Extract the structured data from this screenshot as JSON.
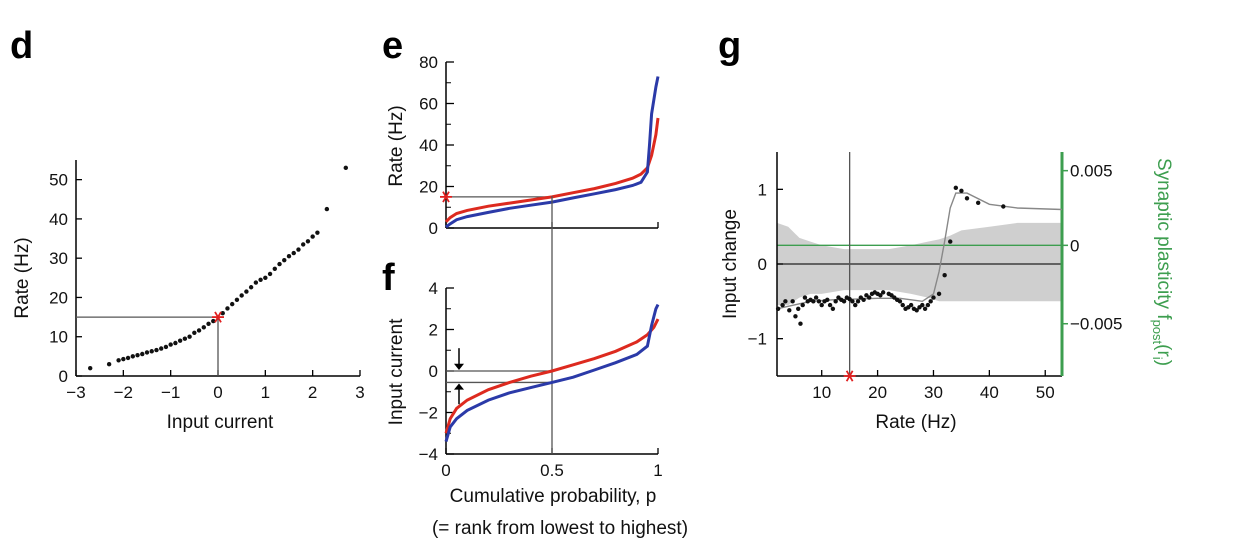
{
  "panels": {
    "d": {
      "letter": "d"
    },
    "e": {
      "letter": "e"
    },
    "f": {
      "letter": "f"
    },
    "g": {
      "letter": "g"
    }
  },
  "chart_data": [
    {
      "id": "d",
      "type": "scatter",
      "xlabel": "Input current",
      "ylabel": "Rate (Hz)",
      "xlim": [
        -3,
        3
      ],
      "ylim": [
        0,
        55
      ],
      "xticks": [
        "−3",
        "−2",
        "−1",
        "0",
        "1",
        "2",
        "3"
      ],
      "yticks": [
        "0",
        "10",
        "20",
        "30",
        "40",
        "50"
      ],
      "marker": {
        "x": 0,
        "y": 15,
        "color": "#e02020"
      },
      "guide_lines": {
        "x": 0,
        "y": 15
      },
      "points": [
        [
          -2.7,
          2
        ],
        [
          -2.3,
          3
        ],
        [
          -2.1,
          4
        ],
        [
          -2.0,
          4.3
        ],
        [
          -1.9,
          4.6
        ],
        [
          -1.8,
          5
        ],
        [
          -1.7,
          5.3
        ],
        [
          -1.6,
          5.6
        ],
        [
          -1.5,
          6
        ],
        [
          -1.4,
          6.3
        ],
        [
          -1.3,
          6.6
        ],
        [
          -1.2,
          7
        ],
        [
          -1.1,
          7.4
        ],
        [
          -1.0,
          8
        ],
        [
          -0.9,
          8.4
        ],
        [
          -0.8,
          9
        ],
        [
          -0.7,
          9.5
        ],
        [
          -0.6,
          10
        ],
        [
          -0.5,
          11
        ],
        [
          -0.4,
          11.6
        ],
        [
          -0.3,
          12.4
        ],
        [
          -0.2,
          13.3
        ],
        [
          -0.1,
          14
        ],
        [
          0.1,
          16
        ],
        [
          0.2,
          17.2
        ],
        [
          0.3,
          18.3
        ],
        [
          0.4,
          19.4
        ],
        [
          0.5,
          20.5
        ],
        [
          0.6,
          21.5
        ],
        [
          0.7,
          22.6
        ],
        [
          0.8,
          23.8
        ],
        [
          0.9,
          24.5
        ],
        [
          1.0,
          25
        ],
        [
          1.1,
          26
        ],
        [
          1.2,
          27.3
        ],
        [
          1.3,
          28.5
        ],
        [
          1.4,
          29.5
        ],
        [
          1.5,
          30.5
        ],
        [
          1.6,
          31.3
        ],
        [
          1.7,
          32.2
        ],
        [
          1.8,
          33.5
        ],
        [
          1.9,
          34.3
        ],
        [
          2.0,
          35.5
        ],
        [
          2.1,
          36.5
        ],
        [
          2.3,
          42.5
        ],
        [
          2.7,
          53
        ]
      ]
    },
    {
      "id": "e",
      "type": "line",
      "xlabel": "",
      "ylabel": "Rate (Hz)",
      "xlim": [
        0,
        1
      ],
      "ylim": [
        0,
        80
      ],
      "yticks": [
        "0",
        "20",
        "40",
        "60",
        "80"
      ],
      "marker": {
        "x": 0,
        "y": 15,
        "color": "#e02020"
      },
      "guide_lines": {
        "x": 0.5,
        "y": 15
      },
      "series": [
        {
          "color": "#dd2a1f",
          "x": [
            0,
            0.02,
            0.05,
            0.1,
            0.2,
            0.3,
            0.4,
            0.5,
            0.6,
            0.7,
            0.8,
            0.88,
            0.92,
            0.95,
            0.97,
            0.99,
            1.0
          ],
          "y": [
            3,
            5,
            7,
            8.5,
            10.5,
            12,
            13.5,
            15,
            17,
            19,
            21.5,
            24,
            26,
            29,
            35,
            45,
            53
          ]
        },
        {
          "color": "#2b3aa8",
          "x": [
            0,
            0.02,
            0.05,
            0.1,
            0.2,
            0.3,
            0.4,
            0.5,
            0.6,
            0.7,
            0.8,
            0.88,
            0.92,
            0.95,
            0.96,
            0.97,
            0.99,
            1.0
          ],
          "y": [
            0.5,
            2,
            4,
            5.5,
            7.5,
            9.5,
            11,
            12.5,
            14.5,
            16.5,
            18.5,
            20.5,
            22,
            27,
            40,
            55,
            68,
            73
          ]
        }
      ]
    },
    {
      "id": "f",
      "type": "line",
      "xlabel": "Cumulative probability, p",
      "xlabel_note": "(= rank from lowest to highest)",
      "ylabel": "Input current",
      "xlim": [
        0,
        1
      ],
      "ylim": [
        -4,
        4
      ],
      "xticks": [
        "0",
        "0.5",
        "1"
      ],
      "yticks": [
        "−4",
        "−2",
        "0",
        "2",
        "4"
      ],
      "guide_lines": {
        "x": 0.5,
        "y": [
          0,
          -0.55
        ]
      },
      "series": [
        {
          "color": "#dd2a1f",
          "x": [
            0,
            0.02,
            0.05,
            0.1,
            0.2,
            0.3,
            0.4,
            0.5,
            0.6,
            0.7,
            0.8,
            0.9,
            0.95,
            0.98,
            1.0
          ],
          "y": [
            -3.0,
            -2.3,
            -1.8,
            -1.4,
            -0.9,
            -0.55,
            -0.25,
            0,
            0.3,
            0.6,
            0.95,
            1.4,
            1.75,
            2.1,
            2.5
          ]
        },
        {
          "color": "#2b3aa8",
          "x": [
            0,
            0.02,
            0.05,
            0.1,
            0.2,
            0.3,
            0.4,
            0.5,
            0.6,
            0.7,
            0.8,
            0.9,
            0.95,
            0.97,
            0.99,
            1.0
          ],
          "y": [
            -3.4,
            -2.7,
            -2.3,
            -1.9,
            -1.4,
            -1.05,
            -0.8,
            -0.55,
            -0.3,
            0.05,
            0.4,
            0.8,
            1.2,
            2.2,
            3.0,
            3.2
          ]
        }
      ]
    },
    {
      "id": "g",
      "type": "scatter",
      "xlabel": "Rate (Hz)",
      "ylabel": "Input change",
      "ylabel_right": "Synaptic plasticity f",
      "ylabel_right_sub": "post",
      "ylabel_right_arg": "(r",
      "ylabel_right_arg_sub": "i",
      "ylabel_right_close": ")",
      "xlim": [
        2,
        53
      ],
      "ylim": [
        -1.5,
        1.5
      ],
      "xticks": [
        "10",
        "20",
        "30",
        "40",
        "50"
      ],
      "yticks": [
        "−1",
        "0",
        "1"
      ],
      "yticks_right": [
        "−0.005",
        "0",
        "0.005"
      ],
      "right_axis_color": "#3d9e4f",
      "marker": {
        "x": 15,
        "y": -1.5,
        "color": "#e02020"
      },
      "guide_lines": {
        "x": 15,
        "y": 0
      },
      "green_line_y": 0.25,
      "band_color": "#cfcfcf",
      "band": {
        "x": [
          2,
          4,
          6,
          8,
          10,
          14,
          18,
          22,
          26,
          29,
          31,
          33,
          35,
          40,
          45,
          50,
          53
        ],
        "upper": [
          0.55,
          0.5,
          0.35,
          0.3,
          0.25,
          0.2,
          0.2,
          0.2,
          0.25,
          0.3,
          0.33,
          0.38,
          0.45,
          0.5,
          0.55,
          0.55,
          0.55
        ],
        "lower": [
          -0.55,
          -0.55,
          -0.45,
          -0.4,
          -0.4,
          -0.35,
          -0.35,
          -0.35,
          -0.4,
          -0.45,
          -0.5,
          -0.5,
          -0.5,
          -0.5,
          -0.5,
          -0.5,
          -0.5
        ]
      },
      "fit_line": {
        "x": [
          2,
          5,
          8,
          12,
          16,
          20,
          24,
          28,
          30,
          31,
          32,
          33,
          34,
          36,
          40,
          45,
          53
        ],
        "y": [
          -0.6,
          -0.55,
          -0.5,
          -0.48,
          -0.47,
          -0.46,
          -0.46,
          -0.5,
          -0.4,
          -0.1,
          0.3,
          0.75,
          0.95,
          0.95,
          0.8,
          0.75,
          0.73
        ]
      },
      "points": [
        [
          2.2,
          -0.6
        ],
        [
          3.0,
          -0.55
        ],
        [
          3.5,
          -0.5
        ],
        [
          4.2,
          -0.62
        ],
        [
          4.8,
          -0.5
        ],
        [
          5.3,
          -0.7
        ],
        [
          5.8,
          -0.6
        ],
        [
          6.2,
          -0.8
        ],
        [
          6.6,
          -0.55
        ],
        [
          7.0,
          -0.45
        ],
        [
          7.5,
          -0.5
        ],
        [
          8.0,
          -0.48
        ],
        [
          8.5,
          -0.5
        ],
        [
          9.0,
          -0.45
        ],
        [
          9.5,
          -0.5
        ],
        [
          10.0,
          -0.55
        ],
        [
          10.5,
          -0.5
        ],
        [
          11.0,
          -0.48
        ],
        [
          11.5,
          -0.55
        ],
        [
          12.0,
          -0.6
        ],
        [
          12.5,
          -0.5
        ],
        [
          13.0,
          -0.45
        ],
        [
          13.5,
          -0.48
        ],
        [
          14.0,
          -0.5
        ],
        [
          14.5,
          -0.45
        ],
        [
          15.0,
          -0.47
        ],
        [
          15.5,
          -0.5
        ],
        [
          16.0,
          -0.55
        ],
        [
          16.5,
          -0.5
        ],
        [
          17.0,
          -0.45
        ],
        [
          17.5,
          -0.48
        ],
        [
          18.0,
          -0.42
        ],
        [
          18.5,
          -0.45
        ],
        [
          19.0,
          -0.4
        ],
        [
          19.5,
          -0.38
        ],
        [
          20.0,
          -0.4
        ],
        [
          20.5,
          -0.42
        ],
        [
          21.0,
          -0.38
        ],
        [
          22.0,
          -0.4
        ],
        [
          22.5,
          -0.42
        ],
        [
          23.0,
          -0.45
        ],
        [
          23.5,
          -0.48
        ],
        [
          24.0,
          -0.5
        ],
        [
          24.5,
          -0.55
        ],
        [
          25.0,
          -0.6
        ],
        [
          25.5,
          -0.58
        ],
        [
          26.0,
          -0.55
        ],
        [
          26.5,
          -0.6
        ],
        [
          27.0,
          -0.62
        ],
        [
          27.5,
          -0.58
        ],
        [
          28.0,
          -0.55
        ],
        [
          28.5,
          -0.6
        ],
        [
          29.0,
          -0.55
        ],
        [
          29.5,
          -0.5
        ],
        [
          30.0,
          -0.45
        ],
        [
          31.0,
          -0.4
        ],
        [
          32.0,
          -0.15
        ],
        [
          33.0,
          0.3
        ],
        [
          34.0,
          1.02
        ],
        [
          35.0,
          0.98
        ],
        [
          36.0,
          0.88
        ],
        [
          38.0,
          0.82
        ],
        [
          42.5,
          0.77
        ]
      ]
    }
  ]
}
